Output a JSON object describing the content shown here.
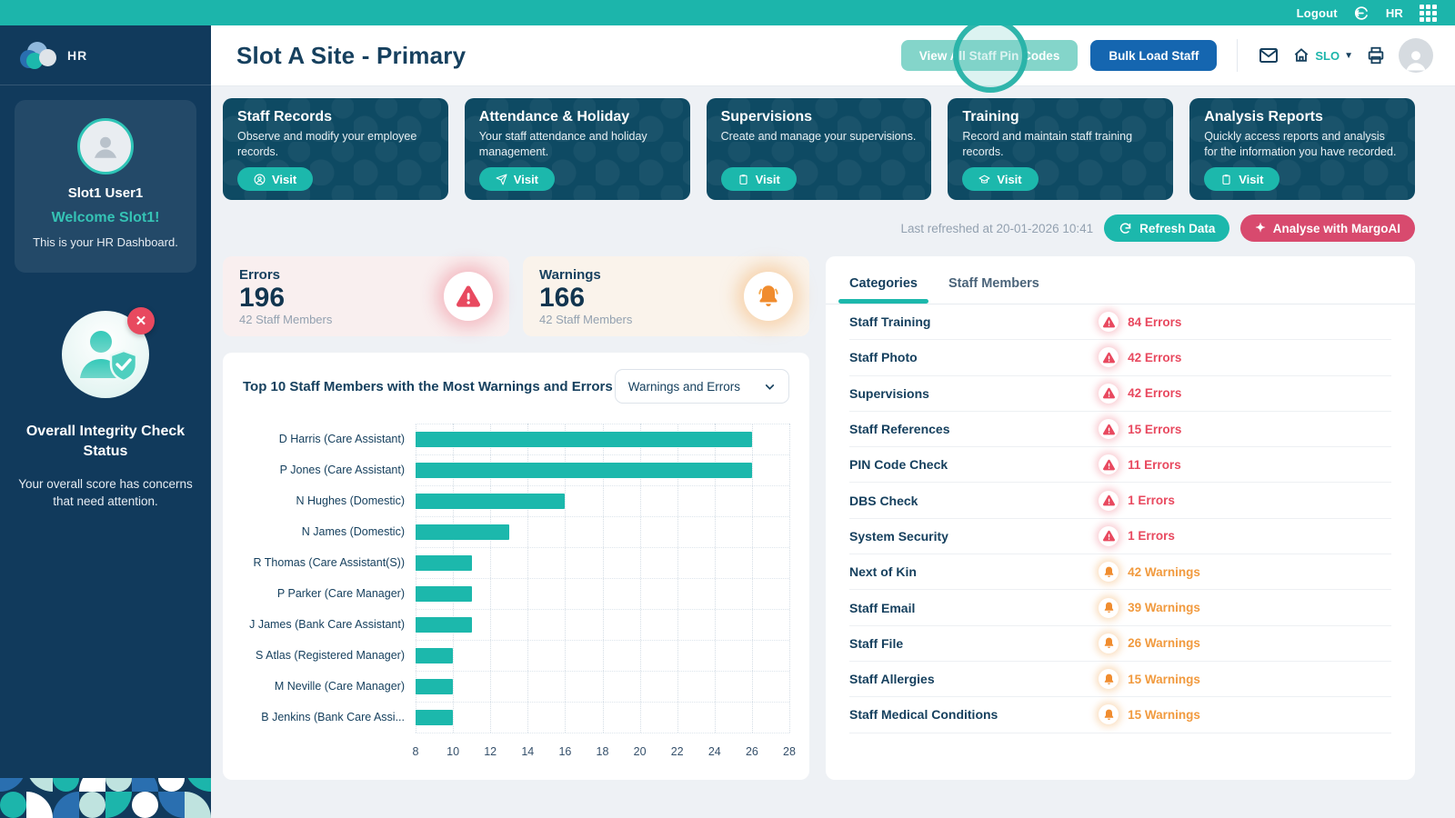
{
  "topbar": {
    "logout_label": "Logout",
    "brand": "HR"
  },
  "sidebar": {
    "logo_text": "HR",
    "user": {
      "name": "Slot1 User1",
      "welcome": "Welcome Slot1!",
      "subtitle": "This is your HR Dashboard."
    },
    "integrity": {
      "title": "Overall Integrity Check Status",
      "description": "Your overall score has concerns that need attention."
    }
  },
  "header": {
    "title": "Slot A Site - Primary",
    "view_pins_label": "View All Staff Pin Codes",
    "bulk_load_label": "Bulk Load Staff",
    "site_code": "SLO"
  },
  "nav_cards": [
    {
      "title": "Staff Records",
      "description": "Observe and modify your employee records.",
      "action": "Visit",
      "icon": "person-icon"
    },
    {
      "title": "Attendance & Holiday",
      "description": "Your staff attendance and holiday management.",
      "action": "Visit",
      "icon": "send-icon"
    },
    {
      "title": "Supervisions",
      "description": "Create and manage your supervisions.",
      "action": "Visit",
      "icon": "clipboard-icon"
    },
    {
      "title": "Training",
      "description": "Record and maintain staff training records.",
      "action": "Visit",
      "icon": "cap-icon"
    },
    {
      "title": "Analysis Reports",
      "description": "Quickly access reports and analysis for the information you have recorded.",
      "action": "Visit",
      "icon": "clipboard-icon"
    }
  ],
  "refresh": {
    "last_refreshed": "Last refreshed at 20-01-2026 10:41",
    "refresh_label": "Refresh Data",
    "ai_label": "Analyse with MargoAI"
  },
  "stats": {
    "errors": {
      "label": "Errors",
      "value": "196",
      "subtitle": "42 Staff Members"
    },
    "warnings": {
      "label": "Warnings",
      "value": "166",
      "subtitle": "42 Staff Members"
    }
  },
  "chart_data": {
    "type": "bar",
    "orientation": "horizontal",
    "title": "Top 10 Staff Members with the Most Warnings and Errors",
    "filter_selected": "Warnings and Errors",
    "categories": [
      "D Harris (Care Assistant)",
      "P Jones (Care Assistant)",
      "N Hughes (Domestic)",
      "N James (Domestic)",
      "R Thomas (Care Assistant(S))",
      "P Parker (Care Manager)",
      "J James (Bank Care Assistant)",
      "S Atlas (Registered Manager)",
      "M Neville (Care Manager)",
      "B Jenkins (Bank Care Assi..."
    ],
    "values": [
      26,
      26,
      16,
      13,
      11,
      11,
      11,
      10,
      10,
      10
    ],
    "xlim": [
      8,
      28
    ],
    "x_ticks": [
      8,
      10,
      12,
      14,
      16,
      18,
      20,
      22,
      24,
      26,
      28
    ],
    "bar_color": "#1cb8ac",
    "grid": true,
    "legend": null
  },
  "categories_panel": {
    "tabs": [
      "Categories",
      "Staff Members"
    ],
    "active_tab": "Categories",
    "rows": [
      {
        "label": "Staff Training",
        "count_text": "84 Errors",
        "type": "error"
      },
      {
        "label": "Staff Photo",
        "count_text": "42 Errors",
        "type": "error"
      },
      {
        "label": "Supervisions",
        "count_text": "42 Errors",
        "type": "error"
      },
      {
        "label": "Staff References",
        "count_text": "15 Errors",
        "type": "error"
      },
      {
        "label": "PIN Code Check",
        "count_text": "11 Errors",
        "type": "error"
      },
      {
        "label": "DBS Check",
        "count_text": "1 Errors",
        "type": "error"
      },
      {
        "label": "System Security",
        "count_text": "1 Errors",
        "type": "error"
      },
      {
        "label": "Next of Kin",
        "count_text": "42 Warnings",
        "type": "warning"
      },
      {
        "label": "Staff Email",
        "count_text": "39 Warnings",
        "type": "warning"
      },
      {
        "label": "Staff File",
        "count_text": "26 Warnings",
        "type": "warning"
      },
      {
        "label": "Staff Allergies",
        "count_text": "15 Warnings",
        "type": "warning"
      },
      {
        "label": "Staff Medical Conditions",
        "count_text": "15 Warnings",
        "type": "warning"
      }
    ]
  },
  "theme": {
    "topbar_teal": "#1cb5ab",
    "sidebar_navy": "#113a5c",
    "card_navy": "#0e4a63",
    "accent_teal": "#1cb8ac",
    "blue_button": "#1566b0",
    "ai_pink": "#d84a6e",
    "error_red": "#e8495f",
    "warning_orange": "#f19a3e",
    "text_navy": "#16405e",
    "muted_gray": "#93a1b0",
    "page_bg": "#eef1f5"
  }
}
